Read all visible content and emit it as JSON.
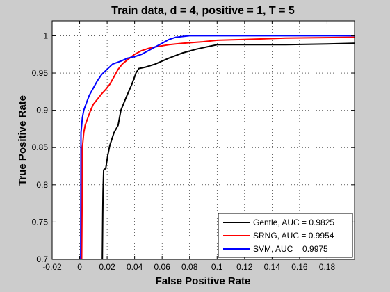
{
  "chart_data": {
    "type": "line",
    "title": "Train data, d = 4, positive = 1, T = 5",
    "xlabel": "False Positive Rate",
    "ylabel": "True Positive Rate",
    "xlim": [
      -0.02,
      0.2
    ],
    "ylim": [
      0.7,
      1.02
    ],
    "x_ticks": [
      -0.02,
      0,
      0.02,
      0.04,
      0.06,
      0.08,
      0.1,
      0.12,
      0.14,
      0.16,
      0.18
    ],
    "x_tick_labels": [
      "-0.02",
      "0",
      "0.02",
      "0.04",
      "0.06",
      "0.08",
      "0.1",
      "0.12",
      "0.14",
      "0.16",
      "0.18"
    ],
    "y_ticks": [
      0.7,
      0.75,
      0.8,
      0.85,
      0.9,
      0.95,
      1
    ],
    "y_tick_labels": [
      "0.7",
      "0.75",
      "0.8",
      "0.85",
      "0.9",
      "0.95",
      "1"
    ],
    "grid": true,
    "legend_position": "bottom-right",
    "series": [
      {
        "name": "Gentle, AUC = 0.9825",
        "color": "#000000",
        "points": [
          [
            0.0165,
            0.7
          ],
          [
            0.0168,
            0.76
          ],
          [
            0.017,
            0.79
          ],
          [
            0.0175,
            0.82
          ],
          [
            0.019,
            0.822
          ],
          [
            0.0205,
            0.84
          ],
          [
            0.022,
            0.853
          ],
          [
            0.025,
            0.87
          ],
          [
            0.028,
            0.88
          ],
          [
            0.03,
            0.9
          ],
          [
            0.034,
            0.918
          ],
          [
            0.038,
            0.935
          ],
          [
            0.041,
            0.95
          ],
          [
            0.043,
            0.956
          ],
          [
            0.048,
            0.958
          ],
          [
            0.055,
            0.962
          ],
          [
            0.065,
            0.97
          ],
          [
            0.075,
            0.977
          ],
          [
            0.085,
            0.982
          ],
          [
            0.095,
            0.986
          ],
          [
            0.1,
            0.988
          ],
          [
            0.12,
            0.988
          ],
          [
            0.15,
            0.988
          ],
          [
            0.18,
            0.989
          ],
          [
            0.2,
            0.99
          ]
        ]
      },
      {
        "name": "SRNG, AUC = 0.9954",
        "color": "#ff0000",
        "points": [
          [
            0.0015,
            0.7
          ],
          [
            0.0018,
            0.78
          ],
          [
            0.002,
            0.85
          ],
          [
            0.003,
            0.87
          ],
          [
            0.004,
            0.88
          ],
          [
            0.006,
            0.89
          ],
          [
            0.008,
            0.9
          ],
          [
            0.01,
            0.908
          ],
          [
            0.013,
            0.915
          ],
          [
            0.016,
            0.922
          ],
          [
            0.019,
            0.928
          ],
          [
            0.022,
            0.935
          ],
          [
            0.025,
            0.945
          ],
          [
            0.028,
            0.955
          ],
          [
            0.031,
            0.962
          ],
          [
            0.035,
            0.968
          ],
          [
            0.04,
            0.975
          ],
          [
            0.045,
            0.98
          ],
          [
            0.05,
            0.983
          ],
          [
            0.055,
            0.985
          ],
          [
            0.065,
            0.988
          ],
          [
            0.075,
            0.99
          ],
          [
            0.09,
            0.992
          ],
          [
            0.1,
            0.994
          ],
          [
            0.12,
            0.995
          ],
          [
            0.15,
            0.997
          ],
          [
            0.2,
            0.998
          ]
        ]
      },
      {
        "name": "SVM, AUC = 0.9975",
        "color": "#0000ff",
        "points": [
          [
            0.0008,
            0.7
          ],
          [
            0.001,
            0.87
          ],
          [
            0.002,
            0.89
          ],
          [
            0.003,
            0.9
          ],
          [
            0.005,
            0.91
          ],
          [
            0.007,
            0.92
          ],
          [
            0.01,
            0.93
          ],
          [
            0.013,
            0.94
          ],
          [
            0.016,
            0.948
          ],
          [
            0.02,
            0.955
          ],
          [
            0.024,
            0.962
          ],
          [
            0.03,
            0.966
          ],
          [
            0.035,
            0.97
          ],
          [
            0.04,
            0.972
          ],
          [
            0.045,
            0.975
          ],
          [
            0.05,
            0.98
          ],
          [
            0.055,
            0.985
          ],
          [
            0.06,
            0.99
          ],
          [
            0.065,
            0.995
          ],
          [
            0.07,
            0.998
          ],
          [
            0.08,
            1.0
          ],
          [
            0.2,
            1.0
          ]
        ]
      }
    ]
  }
}
